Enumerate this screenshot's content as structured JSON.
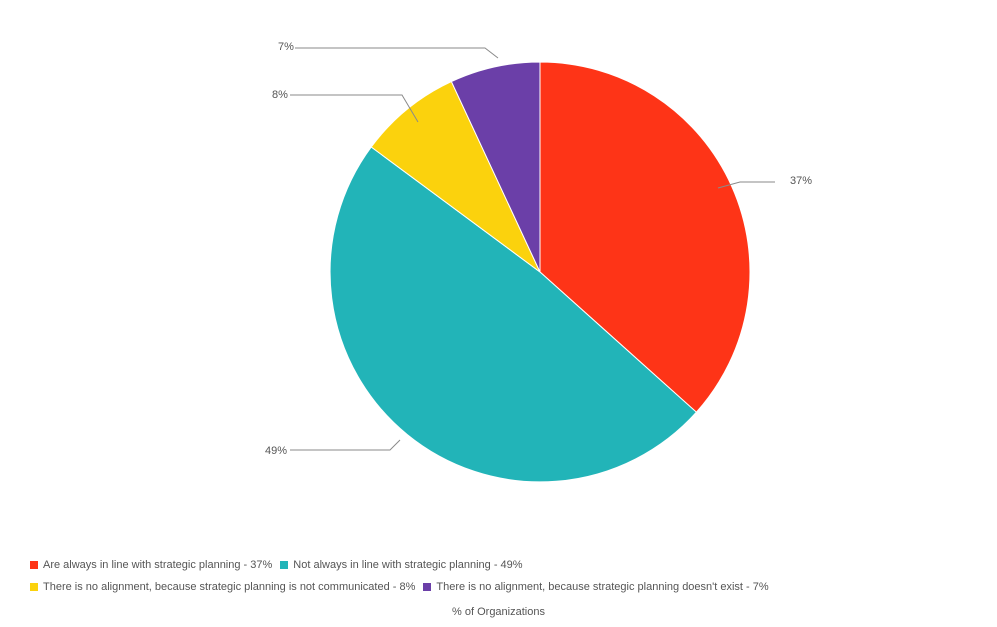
{
  "chart_data": {
    "type": "pie",
    "categories": [
      "Are always in line with strategic planning",
      "Not always in line with strategic planning",
      "There is no alignment, because strategic planning is not communicated",
      "There is no alignment, because strategic planning doesn't exist"
    ],
    "values": [
      37,
      49,
      8,
      7
    ],
    "data_labels": [
      "37%",
      "49%",
      "8%",
      "7%"
    ],
    "legend_labels": [
      "Are always in line with strategic planning - 37%",
      "Not always in line with strategic planning - 49%",
      "There is no alignment, because strategic planning is not communicated - 8%",
      "There is no alignment, because strategic planning doesn't exist - 7%"
    ],
    "colors": [
      "#fe3417",
      "#22b4b8",
      "#fbd20d",
      "#6b3fa8"
    ],
    "start_angle_deg": 0,
    "direction": "clockwise",
    "legend_position": "bottom",
    "xlabel": "% of Organizations"
  }
}
